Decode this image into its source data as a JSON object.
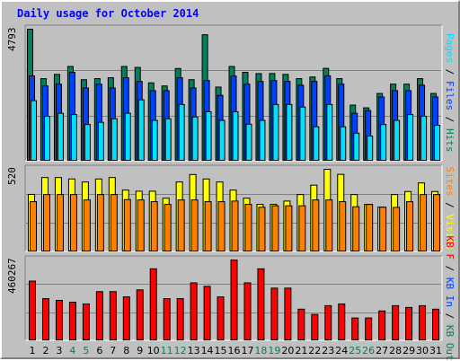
{
  "title": "Daily usage for October 2014",
  "colors": {
    "background": "#c0c0c0",
    "plot": "#c0c0c0",
    "hits": "#00805c",
    "files": "#0040ff",
    "pages": "#00e0ff",
    "visits": "#ffff00",
    "sites": "#ff8000",
    "kbin": "#ff0000",
    "weekday_label": "#000000",
    "weekend_label": "#00805c"
  },
  "chart_data": [
    {
      "type": "bar",
      "title": "Daily usage for October 2014",
      "ymax_label": "4793",
      "ylim": [
        0,
        4793
      ],
      "legend_position": "right",
      "legend": [
        {
          "key": "pages",
          "text": "Pages"
        },
        {
          "key": "sep",
          "text": " / "
        },
        {
          "key": "files",
          "text": "Files"
        },
        {
          "key": "sep",
          "text": " / "
        },
        {
          "key": "hits",
          "text": "Hits"
        }
      ],
      "categories": [
        "1",
        "2",
        "3",
        "4",
        "5",
        "6",
        "7",
        "8",
        "9",
        "10",
        "11",
        "12",
        "13",
        "14",
        "15",
        "16",
        "17",
        "18",
        "19",
        "20",
        "21",
        "22",
        "23",
        "24",
        "25",
        "26",
        "27",
        "28",
        "29",
        "30",
        "31"
      ],
      "series": [
        {
          "name": "Hits",
          "key": "hits",
          "values": [
            4793,
            2997,
            3152,
            3439,
            2959,
            2998,
            3031,
            3439,
            3405,
            2845,
            2732,
            3365,
            2959,
            4592,
            2691,
            3439,
            3228,
            3180,
            3184,
            3152,
            2998,
            3057,
            3371,
            2998,
            2036,
            1938,
            2459,
            2798,
            2798,
            2997,
            2459
          ]
        },
        {
          "name": "Files",
          "key": "files",
          "values": [
            3098,
            2732,
            2798,
            3225,
            2659,
            2798,
            2659,
            3031,
            2897,
            2562,
            2562,
            3031,
            2659,
            2930,
            2392,
            3091,
            2798,
            2897,
            2930,
            2897,
            2759,
            2897,
            3098,
            2798,
            1739,
            1837,
            2332,
            2562,
            2562,
            2759,
            2332
          ]
        },
        {
          "name": "Pages",
          "key": "pages",
          "values": [
            2198,
            1633,
            1740,
            1693,
            1333,
            1412,
            1540,
            1740,
            2228,
            1483,
            1540,
            2059,
            1605,
            1794,
            1482,
            1794,
            1343,
            1482,
            2059,
            2059,
            1966,
            1251,
            2059,
            1251,
            1017,
            912,
            1331,
            1482,
            1693,
            1633,
            1303
          ]
        }
      ]
    },
    {
      "type": "bar",
      "ymax_label": "520",
      "ylim": [
        0,
        520
      ],
      "legend_position": "right",
      "legend": [
        {
          "key": "sites",
          "text": "Sites"
        },
        {
          "key": "sep",
          "text": " / "
        },
        {
          "key": "visits",
          "text": "Visits"
        }
      ],
      "categories": [
        "1",
        "2",
        "3",
        "4",
        "5",
        "6",
        "7",
        "8",
        "9",
        "10",
        "11",
        "12",
        "13",
        "14",
        "15",
        "16",
        "17",
        "18",
        "19",
        "20",
        "21",
        "22",
        "23",
        "24",
        "25",
        "26",
        "27",
        "28",
        "29",
        "30",
        "31"
      ],
      "series": [
        {
          "name": "Visits",
          "key": "visits",
          "values": [
            362,
            468,
            468,
            459,
            440,
            459,
            468,
            389,
            382,
            382,
            338,
            440,
            487,
            459,
            440,
            389,
            338,
            299,
            299,
            320,
            361,
            420,
            520,
            488,
            361,
            299,
            282,
            361,
            380,
            434,
            380
          ]
        },
        {
          "name": "Sites",
          "key": "sites",
          "values": [
            316,
            361,
            361,
            361,
            327,
            361,
            361,
            329,
            327,
            316,
            299,
            327,
            327,
            316,
            316,
            320,
            299,
            281,
            290,
            290,
            290,
            327,
            327,
            316,
            284,
            299,
            281,
            280,
            316,
            361,
            361
          ]
        }
      ]
    },
    {
      "type": "bar",
      "ymax_label": "460267",
      "ylim": [
        0,
        460267
      ],
      "legend_position": "right",
      "legend": [
        {
          "key": "kbin",
          "text": "KB F"
        },
        {
          "key": "sep",
          "text": " / "
        },
        {
          "key": "files",
          "text": "KB In"
        },
        {
          "key": "sep",
          "text": " / "
        },
        {
          "key": "hits",
          "text": "KB Out"
        }
      ],
      "categories": [
        "1",
        "2",
        "3",
        "4",
        "5",
        "6",
        "7",
        "8",
        "9",
        "10",
        "11",
        "12",
        "13",
        "14",
        "15",
        "16",
        "17",
        "18",
        "19",
        "20",
        "21",
        "22",
        "23",
        "24",
        "25",
        "26",
        "27",
        "28",
        "29",
        "30",
        "31"
      ],
      "series": [
        {
          "name": "KB F",
          "key": "kbin",
          "values": [
            340000,
            240000,
            230000,
            220000,
            210000,
            280000,
            280000,
            250000,
            290000,
            410000,
            240000,
            240000,
            330000,
            310000,
            250000,
            460267,
            330000,
            410000,
            300000,
            300000,
            180000,
            150000,
            200000,
            210000,
            130000,
            130000,
            170000,
            200000,
            190000,
            200000,
            180000
          ]
        }
      ]
    }
  ],
  "weekend_days": [
    "4",
    "5",
    "11",
    "12",
    "18",
    "19",
    "25",
    "26"
  ]
}
